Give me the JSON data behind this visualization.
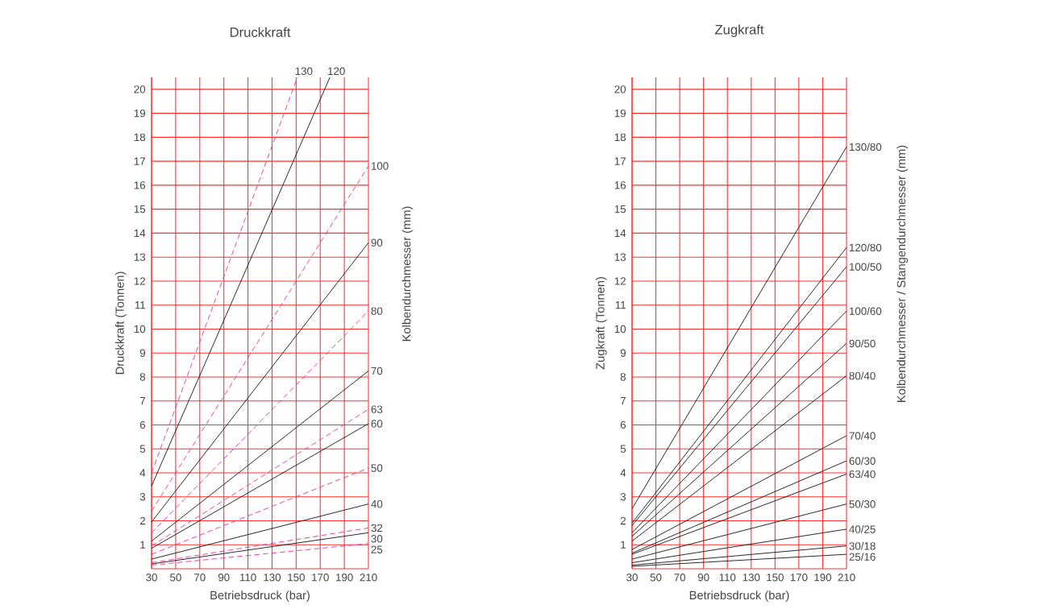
{
  "chart_data": [
    {
      "type": "line",
      "title": "Druckkraft",
      "xlabel": "Betriebsdruck (bar)",
      "ylabel": "Druckkraft (Tonnen)",
      "y2label": "Kolbendurchmesser (mm)",
      "xlim": [
        30,
        210
      ],
      "ylim": [
        0,
        20.5
      ],
      "xticks": [
        30,
        50,
        70,
        90,
        110,
        130,
        150,
        170,
        190,
        210
      ],
      "yticks": [
        1,
        2,
        3,
        4,
        5,
        6,
        7,
        8,
        9,
        10,
        11,
        12,
        13,
        14,
        15,
        16,
        17,
        18,
        19,
        20
      ],
      "grid": true,
      "series": [
        {
          "name": "130",
          "color": "#f0339a",
          "line_style": "dashed",
          "x": [
            30,
            151
          ],
          "values": [
            4.0,
            20.5
          ]
        },
        {
          "name": "120",
          "color": "#1a1a1a",
          "line_style": "solid",
          "x": [
            30,
            178
          ],
          "values": [
            3.45,
            20.5
          ]
        },
        {
          "name": "100",
          "color": "#f0339a",
          "line_style": "dashed",
          "x": [
            30,
            210
          ],
          "values": [
            2.4,
            16.8
          ]
        },
        {
          "name": "90",
          "color": "#1a1a1a",
          "line_style": "solid",
          "x": [
            30,
            210
          ],
          "values": [
            1.95,
            13.6
          ]
        },
        {
          "name": "80",
          "color": "#f0339a",
          "line_style": "dashed",
          "x": [
            30,
            210
          ],
          "values": [
            1.5,
            10.75
          ]
        },
        {
          "name": "70",
          "color": "#1a1a1a",
          "line_style": "solid",
          "x": [
            30,
            210
          ],
          "values": [
            1.15,
            8.25
          ]
        },
        {
          "name": "63",
          "color": "#f0339a",
          "line_style": "dashed",
          "x": [
            30,
            210
          ],
          "values": [
            0.95,
            6.65
          ]
        },
        {
          "name": "60",
          "color": "#1a1a1a",
          "line_style": "solid",
          "x": [
            30,
            210
          ],
          "values": [
            0.85,
            6.05
          ]
        },
        {
          "name": "50",
          "color": "#f0339a",
          "line_style": "dashed",
          "x": [
            30,
            210
          ],
          "values": [
            0.6,
            4.2
          ]
        },
        {
          "name": "40",
          "color": "#1a1a1a",
          "line_style": "solid",
          "x": [
            30,
            210
          ],
          "values": [
            0.4,
            2.7
          ]
        },
        {
          "name": "32",
          "color": "#f0339a",
          "line_style": "dashed",
          "x": [
            30,
            210
          ],
          "values": [
            0.25,
            1.7
          ]
        },
        {
          "name": "30",
          "color": "#1a1a1a",
          "line_style": "solid",
          "x": [
            30,
            210
          ],
          "values": [
            0.2,
            1.5
          ]
        },
        {
          "name": "25",
          "color": "#f0339a",
          "line_style": "dashed",
          "x": [
            30,
            210
          ],
          "values": [
            0.15,
            1.05
          ]
        }
      ]
    },
    {
      "type": "line",
      "title": "Zugkraft",
      "xlabel": "Betriebsdruck (bar)",
      "ylabel": "Zugkraft (Tonnen)",
      "y2label": "Kolbendurchmesser / Stangendurchmesser (mm)",
      "xlim": [
        30,
        210
      ],
      "ylim": [
        0,
        20.5
      ],
      "xticks": [
        30,
        50,
        70,
        90,
        110,
        130,
        150,
        170,
        190,
        210
      ],
      "yticks": [
        1,
        2,
        3,
        4,
        5,
        6,
        7,
        8,
        9,
        10,
        11,
        12,
        13,
        14,
        15,
        16,
        17,
        18,
        19,
        20
      ],
      "grid": true,
      "series": [
        {
          "name": "130/80",
          "color": "#1a1a1a",
          "line_style": "solid",
          "x": [
            30,
            210
          ],
          "values": [
            2.5,
            17.6
          ]
        },
        {
          "name": "120/80",
          "color": "#1a1a1a",
          "line_style": "solid",
          "x": [
            30,
            210
          ],
          "values": [
            1.9,
            13.4
          ]
        },
        {
          "name": "100/50",
          "color": "#1a1a1a",
          "line_style": "solid",
          "x": [
            30,
            210
          ],
          "values": [
            1.8,
            12.6
          ]
        },
        {
          "name": "100/60",
          "color": "#1a1a1a",
          "line_style": "solid",
          "x": [
            30,
            210
          ],
          "values": [
            1.5,
            10.75
          ]
        },
        {
          "name": "90/50",
          "color": "#1a1a1a",
          "line_style": "solid",
          "x": [
            30,
            210
          ],
          "values": [
            1.35,
            9.4
          ]
        },
        {
          "name": "80/40",
          "color": "#1a1a1a",
          "line_style": "solid",
          "x": [
            30,
            210
          ],
          "values": [
            1.15,
            8.05
          ]
        },
        {
          "name": "70/40",
          "color": "#1a1a1a",
          "line_style": "solid",
          "x": [
            30,
            210
          ],
          "values": [
            0.8,
            5.55
          ]
        },
        {
          "name": "60/30",
          "color": "#1a1a1a",
          "line_style": "solid",
          "x": [
            30,
            210
          ],
          "values": [
            0.65,
            4.5
          ]
        },
        {
          "name": "63/40",
          "color": "#1a1a1a",
          "line_style": "solid",
          "x": [
            30,
            210
          ],
          "values": [
            0.6,
            3.95
          ]
        },
        {
          "name": "50/30",
          "color": "#1a1a1a",
          "line_style": "solid",
          "x": [
            30,
            210
          ],
          "values": [
            0.4,
            2.7
          ]
        },
        {
          "name": "40/25",
          "color": "#1a1a1a",
          "line_style": "solid",
          "x": [
            30,
            210
          ],
          "values": [
            0.25,
            1.65
          ]
        },
        {
          "name": "30/18",
          "color": "#1a1a1a",
          "line_style": "solid",
          "x": [
            30,
            210
          ],
          "values": [
            0.15,
            0.95
          ]
        },
        {
          "name": "25/16",
          "color": "#1a1a1a",
          "line_style": "solid",
          "x": [
            30,
            210
          ],
          "values": [
            0.1,
            0.6
          ]
        }
      ]
    }
  ]
}
